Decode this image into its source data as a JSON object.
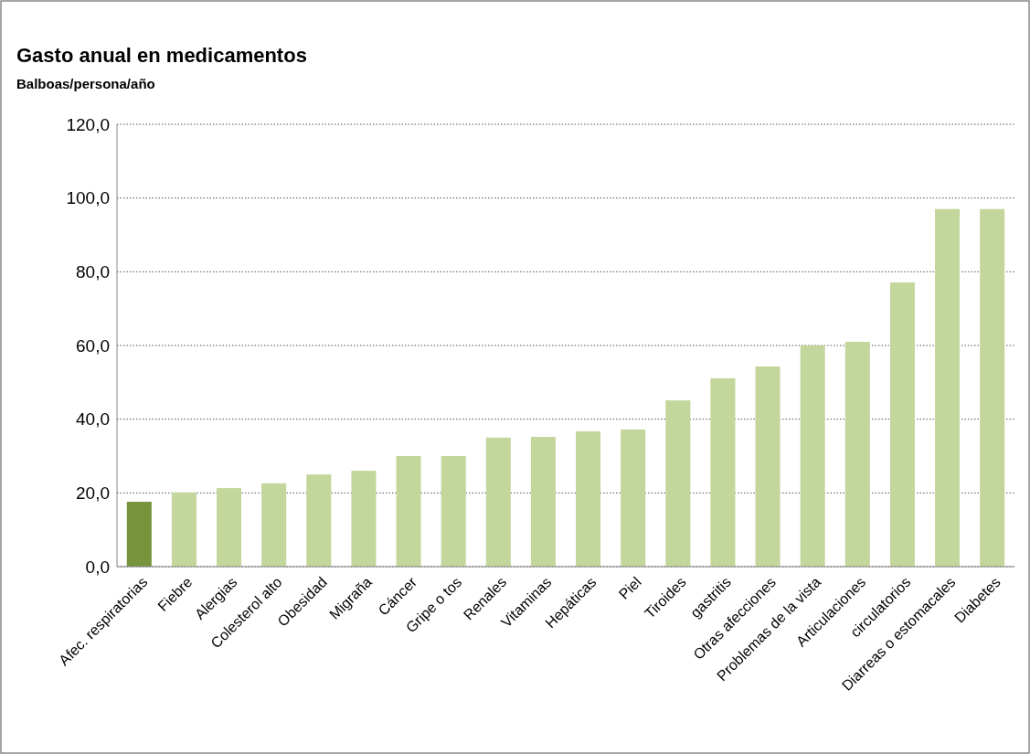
{
  "chart_data": {
    "type": "bar",
    "title": "Gasto anual en medicamentos",
    "subtitle": "Balboas/persona/año",
    "categories": [
      "Afec. respiratorias",
      "Fiebre",
      "Alergias",
      "Colesterol alto",
      "Obesidad",
      "Migraña",
      "Cáncer",
      "Gripe o tos",
      "Renales",
      "Vitaminas",
      "Hepáticas",
      "Piel",
      "Tiroides",
      "gastritis",
      "Otras afecciones",
      "Problemas de la vista",
      "Articulaciones",
      "circulatorios",
      "Diarreas o estomacales",
      "Diabetes"
    ],
    "values": [
      17.6,
      20.1,
      21.3,
      22.6,
      25.0,
      26.0,
      30.0,
      30.0,
      35.0,
      35.2,
      36.7,
      37.2,
      45.1,
      51.1,
      54.3,
      60.0,
      61.0,
      77.1,
      97.0,
      97.0
    ],
    "colors": [
      "#77933c",
      "#c3d69b",
      "#c3d69b",
      "#c3d69b",
      "#c3d69b",
      "#c3d69b",
      "#c3d69b",
      "#c3d69b",
      "#c3d69b",
      "#c3d69b",
      "#c3d69b",
      "#c3d69b",
      "#c3d69b",
      "#c3d69b",
      "#c3d69b",
      "#c3d69b",
      "#c3d69b",
      "#c3d69b",
      "#c3d69b",
      "#c3d69b"
    ],
    "ylim": [
      0,
      120
    ],
    "yticks": [
      {
        "value": 0,
        "label": "0,0"
      },
      {
        "value": 20,
        "label": "20,0"
      },
      {
        "value": 40,
        "label": "40,0"
      },
      {
        "value": 60,
        "label": "60,0"
      },
      {
        "value": 80,
        "label": "80,0"
      },
      {
        "value": 100,
        "label": "100,0"
      },
      {
        "value": 120,
        "label": "120,0"
      }
    ],
    "grid": "y"
  }
}
